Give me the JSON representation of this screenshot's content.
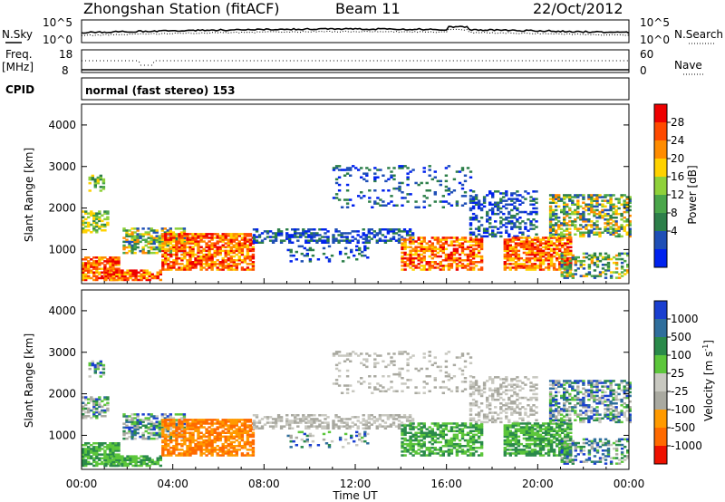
{
  "header": {
    "station": "Zhongshan Station (fitACF)",
    "beam": "Beam 11",
    "date": "22/Oct/2012"
  },
  "strip_noise": {
    "left_label": "N.Sky",
    "right_label": "N.Search",
    "left_ticks": [
      "10^5",
      "10^0"
    ],
    "right_ticks": [
      "10^5",
      "10^0"
    ]
  },
  "strip_freq": {
    "left_label_1": "Freq.",
    "left_label_2": "[MHz]",
    "right_label": "Nave",
    "left_ticks": [
      "18",
      "8"
    ],
    "right_ticks": [
      "60",
      "0"
    ]
  },
  "cpid": {
    "label": "CPID",
    "text": "normal (fast stereo) 153"
  },
  "colors": {
    "power": [
      "#0022ee",
      "#1f4fb6",
      "#2d7f4a",
      "#4aa64a",
      "#8fd13a",
      "#ffd200",
      "#ff8c00",
      "#ff4a00",
      "#ee0000"
    ],
    "velocity": [
      "#1a3fd0",
      "#2f6e9c",
      "#2a8a4a",
      "#5cc63b",
      "#c8c8c0",
      "#a9a9a0",
      "#ff9a00",
      "#ff6a00",
      "#ee1100"
    ]
  },
  "chart_data": [
    {
      "type": "heatmap",
      "panel": "power",
      "xlabel": "",
      "ylabel": "Slant Range [km]",
      "yticks": [
        "1000",
        "2000",
        "3000",
        "4000"
      ],
      "colorbar_label": "Power [dB]",
      "colorbar_ticks": [
        "4",
        "8",
        "12",
        "16",
        "20",
        "24",
        "28"
      ],
      "ylim": [
        180,
        4500
      ],
      "xlim": [
        0,
        24
      ]
    },
    {
      "type": "heatmap",
      "panel": "velocity",
      "xlabel": "Time UT",
      "ylabel": "Slant Range [km]",
      "yticks": [
        "1000",
        "2000",
        "3000",
        "4000"
      ],
      "xticks": [
        "00:00",
        "04:00",
        "08:00",
        "12:00",
        "16:00",
        "20:00",
        "00:00"
      ],
      "colorbar_label": "Velocity [m s",
      "colorbar_unit_sup": "-1",
      "colorbar_ticks": [
        "1000",
        "500",
        "100",
        "25",
        "-25",
        "-100",
        "-500",
        "-1000"
      ],
      "ylim": [
        180,
        4500
      ],
      "xlim": [
        0,
        24
      ]
    }
  ]
}
